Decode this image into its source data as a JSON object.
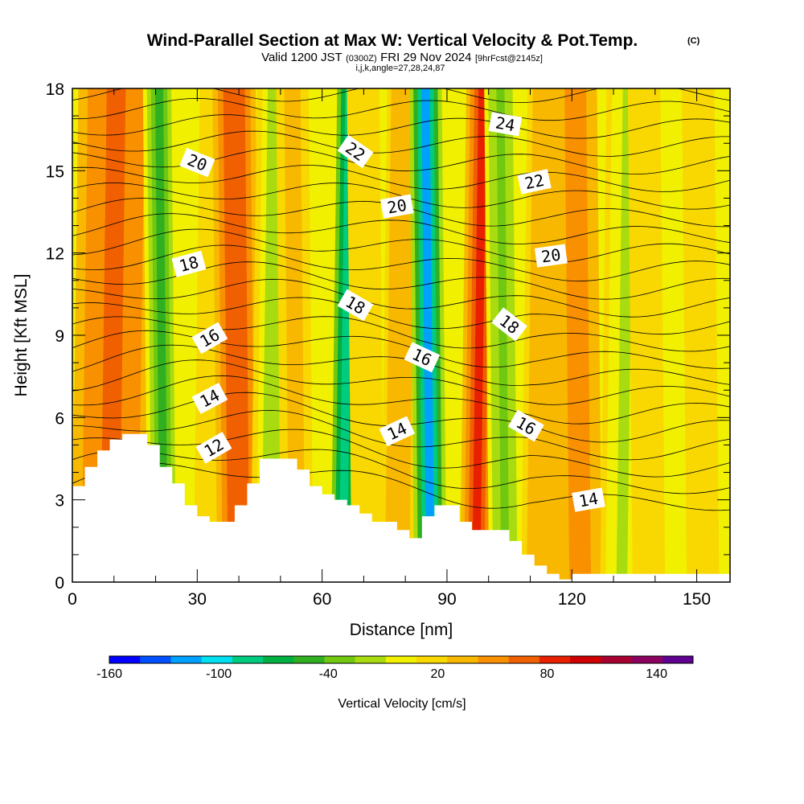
{
  "title": {
    "line1": "Wind-Parallel Section at Max W: Vertical Velocity & Pot.Temp.",
    "line1_units": "(C)",
    "line2_a": "Valid 1200 JST",
    "line2_b": "(0300Z)",
    "line2_c": "FRI 29 Nov 2024",
    "line2_d": "[9hrFcst@2145z]",
    "line3": "i,j,k,angle=27,28,24,87"
  },
  "chart_data": {
    "type": "heatmap",
    "xlabel": "Distance [nm]",
    "ylabel": "Height [Kft MSL]",
    "xlim": [
      0,
      158
    ],
    "ylim": [
      0,
      18
    ],
    "xticks": [
      0,
      30,
      60,
      90,
      120,
      150
    ],
    "yticks": [
      0,
      3,
      6,
      9,
      12,
      15,
      18
    ],
    "colorbar": {
      "title": "Vertical Velocity [cm/s]",
      "tick_labels": [
        "-160",
        "-100",
        "-40",
        "20",
        "80",
        "140"
      ],
      "colors": [
        "#0000ff",
        "#0050ff",
        "#00a0ff",
        "#00e0f0",
        "#00cc80",
        "#00b040",
        "#30b020",
        "#70c810",
        "#a8dc10",
        "#f0f000",
        "#f8d800",
        "#f8b800",
        "#f89000",
        "#f06000",
        "#e82000",
        "#d00000",
        "#a80030",
        "#8c0060",
        "#600090"
      ]
    },
    "terrain_profile": {
      "x": [
        0,
        3,
        6,
        9,
        12,
        15,
        18,
        21,
        24,
        27,
        30,
        33,
        36,
        39,
        42,
        45,
        48,
        51,
        54,
        57,
        60,
        63,
        66,
        69,
        72,
        75,
        78,
        81,
        84,
        87,
        90,
        93,
        96,
        99,
        102,
        105,
        108,
        111,
        114,
        117,
        120,
        158
      ],
      "height": [
        3.5,
        4.2,
        4.8,
        5.2,
        5.4,
        5.4,
        5.0,
        4.2,
        3.6,
        2.8,
        2.4,
        2.2,
        2.2,
        2.8,
        3.6,
        4.5,
        4.5,
        4.5,
        4.1,
        3.5,
        3.2,
        3.0,
        2.8,
        2.5,
        2.2,
        2.2,
        1.9,
        1.6,
        2.4,
        2.8,
        2.8,
        2.2,
        1.9,
        1.9,
        1.9,
        1.5,
        1.0,
        0.6,
        0.3,
        0.1,
        0.3,
        0.3
      ]
    },
    "vertical_velocity_bands": [
      {
        "x": 9,
        "half_width": 7,
        "w": 70
      },
      {
        "x": 22,
        "half_width": 3,
        "w": -50
      },
      {
        "x": 33,
        "half_width": 3,
        "w": 20
      },
      {
        "x": 40,
        "half_width": 4,
        "w": 75
      },
      {
        "x": 48,
        "half_width": 4,
        "w": -25
      },
      {
        "x": 54,
        "half_width": 3,
        "w": 30
      },
      {
        "x": 65,
        "half_width": 3,
        "w": -90
      },
      {
        "x": 71,
        "half_width": 3,
        "w": 10
      },
      {
        "x": 78,
        "half_width": 3,
        "w": 40
      },
      {
        "x": 86,
        "half_width": 3,
        "w": -115
      },
      {
        "x": 97,
        "half_width": 3,
        "w": 85
      },
      {
        "x": 104,
        "half_width": 3,
        "w": -40
      },
      {
        "x": 113,
        "half_width": 4,
        "w": 35
      },
      {
        "x": 122,
        "half_width": 4,
        "w": 55
      },
      {
        "x": 132,
        "half_width": 4,
        "w": -10
      },
      {
        "x": 145,
        "half_width": 8,
        "w": 5
      }
    ],
    "theta_contours": {
      "levels": [
        12,
        14,
        16,
        18,
        20,
        22,
        24
      ],
      "labels": [
        {
          "text": "20",
          "x": 30,
          "y": 15.3,
          "angle": 22
        },
        {
          "text": "22",
          "x": 68,
          "y": 15.7,
          "angle": 35
        },
        {
          "text": "24",
          "x": 104,
          "y": 16.7,
          "angle": 10
        },
        {
          "text": "20",
          "x": 78,
          "y": 13.7,
          "angle": -10
        },
        {
          "text": "22",
          "x": 111,
          "y": 14.6,
          "angle": -12
        },
        {
          "text": "18",
          "x": 28,
          "y": 11.6,
          "angle": -15
        },
        {
          "text": "20",
          "x": 115,
          "y": 11.9,
          "angle": -8
        },
        {
          "text": "18",
          "x": 68,
          "y": 10.1,
          "angle": 30
        },
        {
          "text": "18",
          "x": 105,
          "y": 9.4,
          "angle": 38
        },
        {
          "text": "16",
          "x": 33,
          "y": 8.9,
          "angle": -30
        },
        {
          "text": "16",
          "x": 84,
          "y": 8.2,
          "angle": 25
        },
        {
          "text": "14",
          "x": 33,
          "y": 6.7,
          "angle": -28
        },
        {
          "text": "14",
          "x": 78,
          "y": 5.5,
          "angle": -25
        },
        {
          "text": "16",
          "x": 109,
          "y": 5.7,
          "angle": 30
        },
        {
          "text": "12",
          "x": 34,
          "y": 4.9,
          "angle": -30
        },
        {
          "text": "14",
          "x": 124,
          "y": 3.0,
          "angle": -10
        }
      ]
    }
  }
}
